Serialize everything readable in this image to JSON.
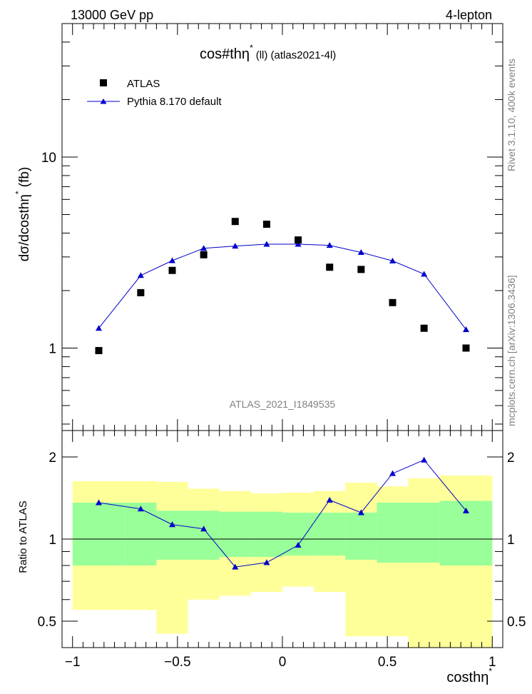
{
  "header": {
    "left": "13000 GeV pp",
    "right": "4-lepton"
  },
  "side_labels": {
    "rivet": "Rivet 3.1.10,  400k events",
    "mcplots": "mcplots.cern.ch [arXiv:1306.3436]"
  },
  "chart_data": [
    {
      "type": "scatter",
      "panel": "main",
      "title": "cos#thη",
      "title_sup": "*",
      "title_suffix": "(ll) (atlas2021-4l)",
      "ylabel": "dσ/dcosthη",
      "ylabel_sup": "*",
      "ylabel_unit": " (fb)",
      "watermark": "ATLAS_2021_I1849535",
      "yscale": "log",
      "ylim": [
        0.37,
        50
      ],
      "xlim": [
        -1.05,
        1.05
      ],
      "yticks": [
        1,
        10
      ],
      "ytick_labels": [
        "1",
        "10"
      ],
      "legend_position": "top-left",
      "x": [
        -0.875,
        -0.675,
        -0.525,
        -0.375,
        -0.225,
        -0.075,
        0.075,
        0.225,
        0.375,
        0.525,
        0.675,
        0.875
      ],
      "series": [
        {
          "name": "ATLAS",
          "marker": "square",
          "color": "#000000",
          "values": [
            0.97,
            1.95,
            2.55,
            3.08,
            4.6,
            4.45,
            3.68,
            2.65,
            2.58,
            1.73,
            1.27,
            1.0
          ]
        },
        {
          "name": "Pythia 8.170 default",
          "marker": "triangle",
          "color": "#0000cc",
          "values": [
            1.27,
            2.4,
            2.87,
            3.33,
            3.42,
            3.5,
            3.5,
            3.45,
            3.17,
            2.86,
            2.44,
            1.25
          ]
        }
      ]
    },
    {
      "type": "line",
      "panel": "ratio",
      "ylabel": "Ratio to ATLAS",
      "xlabel": "costhη",
      "xlabel_sup": "*",
      "yscale": "log",
      "ylim": [
        0.4,
        2.5
      ],
      "xlim": [
        -1.05,
        1.05
      ],
      "yticks": [
        0.5,
        1,
        2
      ],
      "ytick_labels": [
        "0.5",
        "1",
        "2"
      ],
      "xticks": [
        -1,
        -0.5,
        0,
        0.5,
        1
      ],
      "xtick_labels": [
        "−1",
        "−0.5",
        "0",
        "0.5",
        "1"
      ],
      "bin_edges": [
        -1,
        -0.75,
        -0.6,
        -0.45,
        -0.3,
        -0.15,
        0,
        0.15,
        0.3,
        0.45,
        0.6,
        0.75,
        1
      ],
      "band_1sigma": [
        [
          0.8,
          1.36
        ],
        [
          0.8,
          1.36
        ],
        [
          0.84,
          1.27
        ],
        [
          0.84,
          1.27
        ],
        [
          0.86,
          1.26
        ],
        [
          0.86,
          1.26
        ],
        [
          0.87,
          1.25
        ],
        [
          0.87,
          1.25
        ],
        [
          0.84,
          1.25
        ],
        [
          0.82,
          1.36
        ],
        [
          0.82,
          1.36
        ],
        [
          0.8,
          1.38
        ],
        [
          0.77,
          1.36
        ]
      ],
      "band_2sigma": [
        [
          0.55,
          1.63
        ],
        [
          0.55,
          1.63
        ],
        [
          0.45,
          1.62
        ],
        [
          0.6,
          1.53
        ],
        [
          0.62,
          1.5
        ],
        [
          0.64,
          1.47
        ],
        [
          0.67,
          1.48
        ],
        [
          0.64,
          1.5
        ],
        [
          0.44,
          1.61
        ],
        [
          0.44,
          1.56
        ],
        [
          0.39,
          1.67
        ],
        [
          0.39,
          1.71
        ],
        [
          0.43,
          1.62
        ]
      ],
      "band_colors": {
        "one_sigma": "#99ff99",
        "two_sigma": "#ffff99"
      },
      "x": [
        -0.875,
        -0.675,
        -0.525,
        -0.375,
        -0.225,
        -0.075,
        0.075,
        0.225,
        0.375,
        0.525,
        0.675,
        0.875
      ],
      "series": [
        {
          "name": "Pythia 8.170 default",
          "color": "#0000cc",
          "values": [
            1.36,
            1.29,
            1.13,
            1.09,
            0.79,
            0.82,
            0.95,
            1.39,
            1.25,
            1.74,
            1.95,
            1.27
          ]
        }
      ]
    }
  ]
}
